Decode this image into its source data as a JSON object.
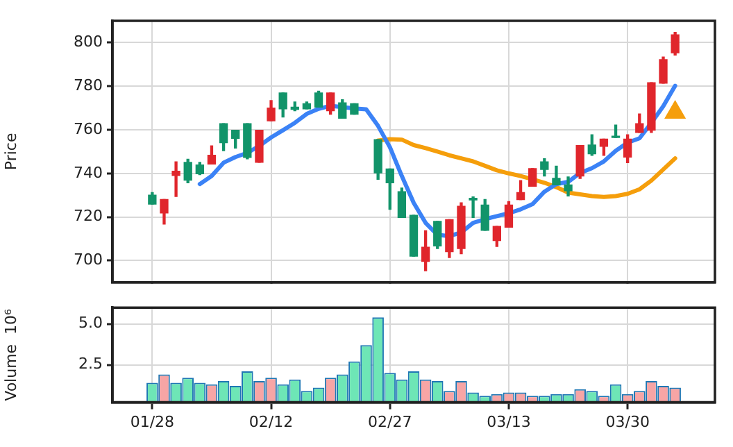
{
  "chart_data": [
    {
      "type": "candlestick",
      "ylabel": "Price",
      "categories": [
        null,
        null,
        null,
        null,
        null,
        null,
        null,
        null,
        null,
        null,
        null,
        null,
        null,
        null,
        null,
        null,
        null,
        null,
        null,
        null,
        null,
        null,
        null,
        null,
        null,
        null,
        null,
        null,
        null,
        null,
        null,
        null,
        null,
        null,
        null,
        null,
        null,
        null,
        null,
        null,
        null,
        null,
        null,
        null,
        null
      ],
      "ohlc": [
        [
          730.0,
          731.2,
          725.9,
          725.9
        ],
        [
          721.8,
          728.0,
          716.7,
          728.0
        ],
        [
          739.0,
          745.3,
          729.4,
          741.0
        ],
        [
          745.1,
          746.5,
          735.7,
          736.9
        ],
        [
          743.9,
          745.1,
          739.4,
          739.8
        ],
        [
          744.3,
          752.6,
          744.3,
          748.3
        ],
        [
          762.8,
          762.8,
          750.4,
          754.1
        ],
        [
          759.8,
          759.8,
          751.6,
          756.1
        ],
        [
          762.8,
          762.8,
          746.7,
          747.3
        ],
        [
          745.1,
          759.8,
          745.1,
          759.8
        ],
        [
          764.1,
          773.4,
          764.1,
          770.0
        ],
        [
          776.9,
          776.9,
          765.9,
          769.6
        ],
        [
          770.4,
          772.8,
          768.7,
          769.4
        ],
        [
          772.0,
          772.8,
          769.6,
          769.6
        ],
        [
          776.9,
          777.7,
          770.4,
          770.4
        ],
        [
          768.7,
          776.9,
          767.1,
          776.9
        ],
        [
          772.4,
          773.8,
          765.3,
          765.3
        ],
        [
          772.0,
          772.0,
          767.1,
          767.1
        ],
        null,
        [
          755.5,
          755.5,
          737.3,
          740.2
        ],
        [
          742.0,
          742.0,
          723.5,
          735.7
        ],
        [
          731.6,
          733.3,
          719.8,
          719.8
        ],
        [
          720.8,
          720.8,
          702.0,
          702.0
        ],
        [
          699.6,
          713.7,
          695.3,
          706.1
        ],
        [
          718.0,
          718.0,
          705.5,
          706.7
        ],
        [
          704.1,
          718.8,
          701.4,
          718.8
        ],
        [
          705.5,
          726.5,
          703.1,
          724.9
        ],
        [
          728.6,
          729.2,
          719.8,
          727.8
        ],
        [
          725.5,
          728.0,
          713.9,
          713.9
        ],
        [
          709.2,
          715.7,
          706.5,
          715.7
        ],
        [
          715.3,
          727.1,
          715.3,
          725.5
        ],
        [
          728.0,
          736.7,
          728.0,
          731.2
        ],
        [
          734.1,
          742.2,
          734.1,
          742.2
        ],
        [
          745.3,
          746.7,
          738.8,
          741.8
        ],
        [
          737.7,
          743.3,
          734.7,
          734.7
        ],
        [
          734.7,
          738.4,
          729.6,
          732.0
        ],
        [
          738.8,
          752.8,
          737.7,
          752.8
        ],
        [
          753.0,
          757.7,
          748.3,
          749.0
        ],
        [
          752.4,
          755.7,
          748.3,
          755.7
        ],
        [
          757.1,
          762.2,
          756.5,
          756.5
        ],
        [
          747.5,
          757.7,
          744.9,
          755.7
        ],
        [
          758.8,
          767.3,
          758.8,
          762.8
        ],
        [
          759.8,
          781.6,
          758.8,
          781.6
        ],
        [
          781.4,
          793.4,
          781.4,
          792.2
        ],
        [
          795.3,
          804.7,
          794.3,
          803.6
        ]
      ],
      "colors": [
        "#12946a",
        "#e0262c",
        "#e0262c",
        "#12946a",
        "#12946a",
        "#e0262c",
        "#12946a",
        "#12946a",
        "#12946a",
        "#e0262c",
        "#e0262c",
        "#12946a",
        "#12946a",
        "#12946a",
        "#12946a",
        "#e0262c",
        "#12946a",
        "#12946a",
        null,
        "#12946a",
        "#12946a",
        "#12946a",
        "#12946a",
        "#e0262c",
        "#12946a",
        "#e0262c",
        "#e0262c",
        "#12946a",
        "#12946a",
        "#e0262c",
        "#e0262c",
        "#e0262c",
        "#e0262c",
        "#12946a",
        "#12946a",
        "#12946a",
        "#e0262c",
        "#12946a",
        "#e0262c",
        "#12946a",
        "#e0262c",
        "#e0262c",
        "#e0262c",
        "#e0262c",
        "#e0262c"
      ],
      "series": [
        {
          "type": "line",
          "color": "#3b82f6",
          "values": [
            null,
            null,
            null,
            null,
            735.1,
            738.8,
            744.9,
            747.5,
            749.4,
            752.6,
            756.5,
            759.8,
            763.2,
            767.3,
            769.6,
            771.0,
            770.4,
            769.8,
            769.4,
            761.8,
            752.0,
            738.8,
            726.5,
            717.3,
            711.8,
            711.2,
            712.9,
            717.3,
            719.0,
            720.4,
            721.7,
            723.5,
            725.9,
            731.6,
            735.1,
            736.1,
            740.2,
            742.4,
            745.5,
            750.4,
            754.1,
            756.1,
            763.2,
            770.8,
            780.2
          ]
        },
        {
          "type": "line",
          "color": "#f59e0b",
          "values": [
            null,
            null,
            null,
            null,
            null,
            null,
            null,
            null,
            null,
            null,
            null,
            null,
            null,
            null,
            null,
            null,
            null,
            null,
            null,
            755.1,
            755.7,
            755.5,
            753.0,
            751.6,
            750.0,
            748.3,
            746.9,
            745.5,
            743.5,
            741.4,
            740.0,
            738.8,
            737.3,
            735.7,
            733.7,
            731.2,
            730.4,
            729.6,
            729.2,
            729.6,
            730.6,
            732.7,
            736.7,
            741.8,
            746.9
          ]
        },
        {
          "type": "scatter",
          "marker": "triangle",
          "color": "#f59e0b",
          "values": [
            null,
            null,
            null,
            null,
            null,
            null,
            null,
            null,
            null,
            null,
            null,
            null,
            null,
            null,
            null,
            null,
            null,
            null,
            null,
            null,
            null,
            null,
            null,
            null,
            null,
            null,
            null,
            null,
            null,
            null,
            null,
            null,
            null,
            null,
            null,
            null,
            null,
            null,
            null,
            null,
            null,
            null,
            null,
            null,
            768
          ]
        }
      ],
      "ylim": [
        690,
        810
      ],
      "yticks": [
        700,
        720,
        740,
        760,
        780,
        800
      ],
      "grid": true,
      "legend": false,
      "tick_labels": "y"
    },
    {
      "type": "bar",
      "ylabel": "Volume  10⁶",
      "categories": [
        "01/28",
        null,
        null,
        null,
        null,
        null,
        null,
        null,
        null,
        null,
        "02/12",
        null,
        null,
        null,
        null,
        null,
        null,
        null,
        null,
        null,
        "02/27",
        null,
        null,
        null,
        null,
        null,
        null,
        null,
        null,
        null,
        "03/13",
        null,
        null,
        null,
        null,
        null,
        null,
        null,
        null,
        null,
        "03/30",
        null,
        null,
        null,
        null
      ],
      "values": [
        1.4,
        1.9,
        1.4,
        1.7,
        1.4,
        1.3,
        1.5,
        1.2,
        2.1,
        1.5,
        1.7,
        1.3,
        1.6,
        0.9,
        1.1,
        1.7,
        1.9,
        2.7,
        3.7,
        5.4,
        2.0,
        1.6,
        2.1,
        1.6,
        1.5,
        0.9,
        1.5,
        0.8,
        0.6,
        0.7,
        0.8,
        0.8,
        0.6,
        0.6,
        0.7,
        0.7,
        1.0,
        0.9,
        0.6,
        1.3,
        0.7,
        0.9,
        1.5,
        1.2,
        1.1
      ],
      "colors": [
        "#6ee6b6",
        "#f7a5a5",
        "#6ee6b6",
        "#6ee6b6",
        "#6ee6b6",
        "#f7a5a5",
        "#6ee6b6",
        "#6ee6b6",
        "#6ee6b6",
        "#f7a5a5",
        "#f7a5a5",
        "#6ee6b6",
        "#6ee6b6",
        "#6ee6b6",
        "#6ee6b6",
        "#f7a5a5",
        "#6ee6b6",
        "#6ee6b6",
        "#6ee6b6",
        "#6ee6b6",
        "#6ee6b6",
        "#6ee6b6",
        "#6ee6b6",
        "#f7a5a5",
        "#6ee6b6",
        "#f7a5a5",
        "#f7a5a5",
        "#6ee6b6",
        "#6ee6b6",
        "#f7a5a5",
        "#f7a5a5",
        "#f7a5a5",
        "#f7a5a5",
        "#6ee6b6",
        "#6ee6b6",
        "#6ee6b6",
        "#f7a5a5",
        "#6ee6b6",
        "#f7a5a5",
        "#6ee6b6",
        "#f7a5a5",
        "#f7a5a5",
        "#f7a5a5",
        "#f7a5a5",
        "#f7a5a5"
      ],
      "ylim": [
        0.2,
        6
      ],
      "yticks": [
        {
          "value": 2.5,
          "label": "2.5"
        },
        {
          "value": 5,
          "label": "5.0"
        }
      ],
      "grid": true,
      "legend": false
    }
  ]
}
